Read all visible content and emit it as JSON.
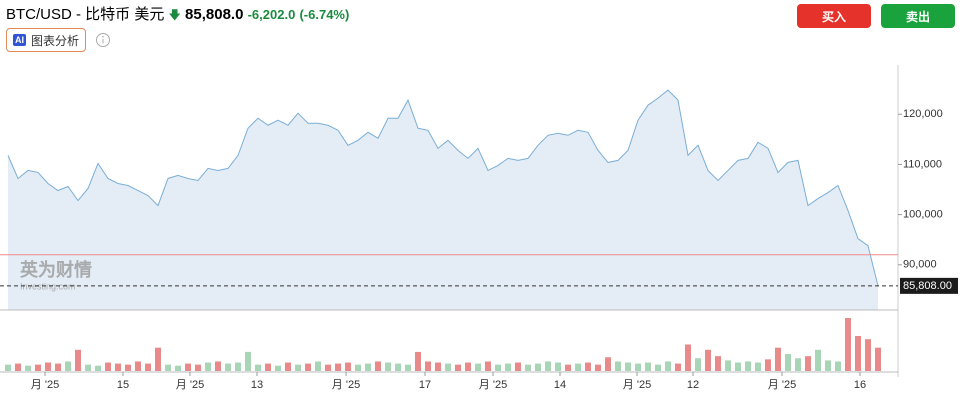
{
  "header": {
    "pair": "BTC/USD - 比特币 美元",
    "price": "85,808.0",
    "change": "-6,202.0",
    "change_pct": "(-6.74%)",
    "buy": "买入",
    "sell": "卖出",
    "ai_badge": "AI",
    "ai_label": "图表分析"
  },
  "watermark": {
    "brand": "英为财情",
    "site": "Investing.com"
  },
  "chart_data": {
    "type": "area",
    "x": [
      0,
      1,
      2,
      3,
      4,
      5,
      6,
      7,
      8,
      9,
      10,
      11,
      12,
      13,
      14,
      15,
      16,
      17,
      18,
      19,
      20,
      21,
      22,
      23,
      24,
      25,
      26,
      27,
      28,
      29,
      30,
      31,
      32,
      33,
      34,
      35,
      36,
      37,
      38,
      39,
      40,
      41,
      42,
      43,
      44,
      45,
      46,
      47,
      48,
      49,
      50,
      51,
      52,
      53,
      54,
      55,
      56,
      57,
      58,
      59,
      60,
      61,
      62,
      63,
      64,
      65,
      66,
      67,
      68,
      69,
      70,
      71,
      72,
      73,
      74,
      75,
      76,
      77,
      78,
      79,
      80,
      81,
      82,
      83,
      84,
      85,
      86,
      87
    ],
    "series": [
      {
        "name": "BTC/USD",
        "color": "#7aaed6",
        "values": [
          111800,
          107200,
          108800,
          108400,
          106200,
          104800,
          105600,
          102800,
          105200,
          110200,
          107200,
          106200,
          105800,
          104800,
          103800,
          101800,
          107200,
          107800,
          107200,
          106800,
          109200,
          108800,
          109200,
          111800,
          117200,
          119200,
          117800,
          118800,
          117800,
          120200,
          118200,
          118200,
          117800,
          116800,
          113800,
          114800,
          116400,
          115200,
          119200,
          119200,
          122800,
          117200,
          116800,
          113200,
          114800,
          112800,
          111200,
          113200,
          108800,
          109800,
          111200,
          110800,
          111200,
          113800,
          115800,
          116200,
          115800,
          116800,
          116400,
          112800,
          110400,
          110800,
          112800,
          118800,
          121800,
          123200,
          124800,
          122800,
          111800,
          113800,
          108800,
          106800,
          108800,
          110800,
          111200,
          114400,
          113200,
          108400,
          110400,
          110800,
          101800,
          103200,
          104400,
          105800,
          100800,
          95200,
          93800,
          85808
        ]
      }
    ],
    "volume": {
      "up_color": "#a8d5b5",
      "down_color": "#e88a8a",
      "values": [
        6,
        7,
        5,
        6,
        8,
        7,
        9,
        20,
        6,
        5,
        8,
        7,
        6,
        9,
        7,
        22,
        6,
        5,
        7,
        6,
        8,
        9,
        7,
        8,
        18,
        6,
        7,
        5,
        8,
        6,
        7,
        9,
        6,
        7,
        8,
        6,
        7,
        9,
        8,
        7,
        6,
        18,
        9,
        8,
        7,
        6,
        8,
        7,
        9,
        6,
        7,
        8,
        6,
        7,
        9,
        8,
        6,
        7,
        8,
        6,
        13,
        9,
        8,
        7,
        8,
        6,
        9,
        7,
        25,
        12,
        20,
        14,
        10,
        8,
        9,
        8,
        11,
        22,
        16,
        12,
        14,
        20,
        10,
        9,
        50,
        33,
        30,
        22
      ]
    },
    "xlim": [
      0,
      89
    ],
    "xticks": [
      {
        "value": 3.7,
        "label": "月 '25"
      },
      {
        "value": 11.5,
        "label": "15"
      },
      {
        "value": 18.2,
        "label": "月 '25"
      },
      {
        "value": 24.9,
        "label": "13"
      },
      {
        "value": 33.8,
        "label": "月 '25"
      },
      {
        "value": 41.7,
        "label": "17"
      },
      {
        "value": 48.5,
        "label": "月 '25"
      },
      {
        "value": 55.2,
        "label": "14"
      },
      {
        "value": 62.9,
        "label": "月 '25"
      },
      {
        "value": 68.5,
        "label": "12"
      },
      {
        "value": 77.4,
        "label": "月 '25"
      },
      {
        "value": 85.2,
        "label": "16"
      }
    ],
    "ylim": [
      81000,
      129800
    ],
    "yticks": [
      {
        "value": 90000,
        "label": "90,000"
      },
      {
        "value": 100000,
        "label": "100,000"
      },
      {
        "value": 110000,
        "label": "110,000"
      },
      {
        "value": 120000,
        "label": "120,000"
      }
    ],
    "prev_close": 92010,
    "price_tag": {
      "value": 85808,
      "label": "85,808.00"
    }
  }
}
